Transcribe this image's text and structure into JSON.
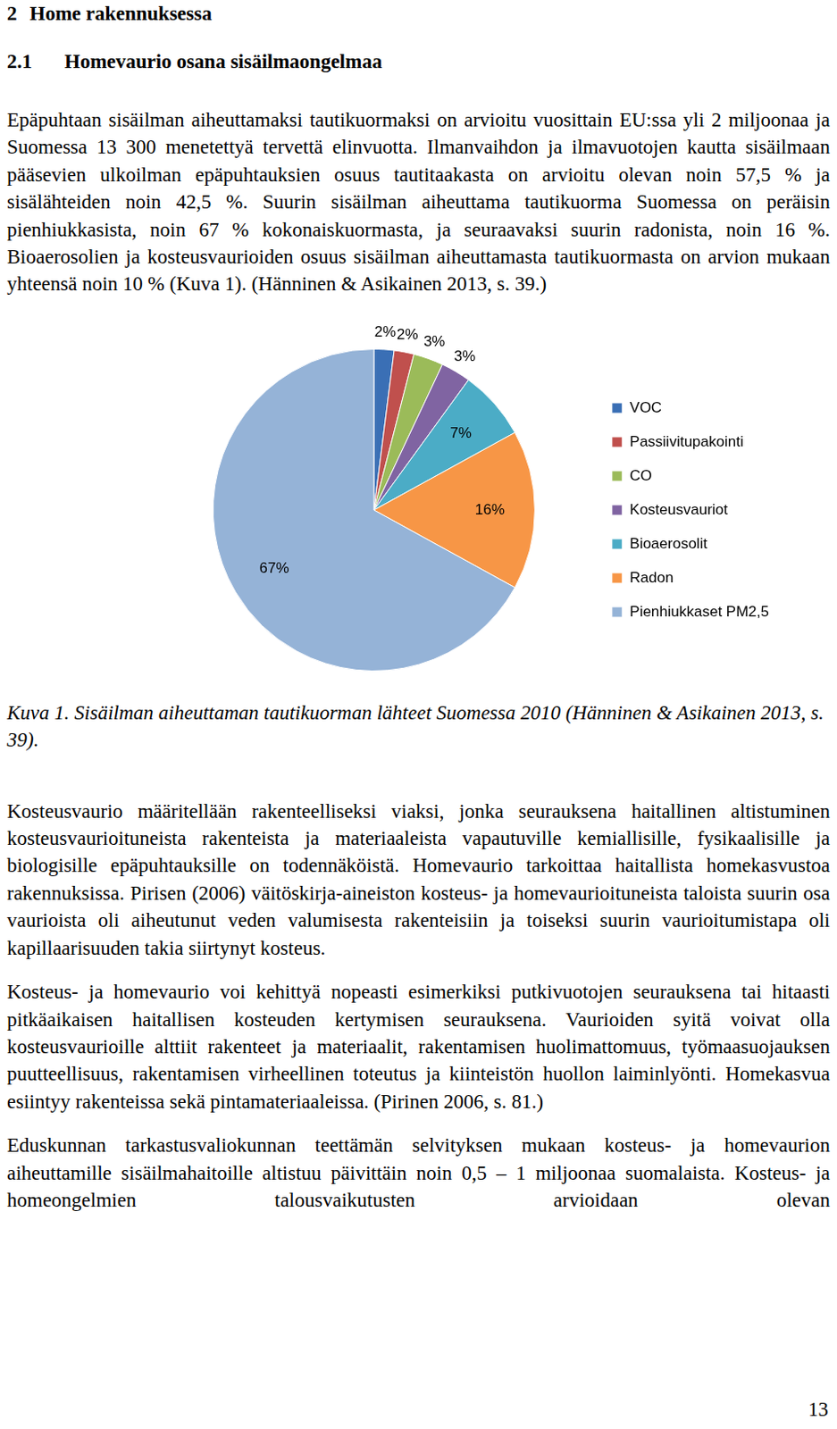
{
  "document": {
    "heading": {
      "number": "2",
      "text": "Home rakennuksessa"
    },
    "subheading": {
      "number": "2.1",
      "text": "Homevaurio osana sisäilmaongelmaa"
    },
    "paragraphs_before": [
      "Epäpuhtaan sisäilman aiheuttamaksi tautikuormaksi on arvioitu vuosittain EU:ssa yli 2 miljoonaa ja Suomessa 13 300 menetettyä tervettä elinvuotta. Ilmanvaihdon ja ilmavuotojen kautta sisäilmaan pääsevien ulkoilman epäpuhtauksien osuus tautitaakasta on arvioitu olevan noin 57,5 % ja sisälähteiden noin 42,5 %. Suurin sisäilman aiheuttama tautikuorma Suomessa on peräisin pienhiukkasista, noin 67 % kokonaiskuormasta, ja seuraavaksi suurin radonista, noin 16 %. Bioaerosolien ja kosteusvaurioiden osuus sisäilman aiheuttamasta tautikuormasta on arvion mukaan yhteensä noin 10 % (Kuva 1). (Hänninen & Asikainen 2013, s. 39.)"
    ],
    "figure_caption": "Kuva 1. Sisäilman aiheuttaman tautikuorman lähteet Suomessa 2010 (Hänninen & Asikainen 2013, s. 39).",
    "paragraphs_after": [
      "Kosteusvaurio määritellään rakenteelliseksi viaksi, jonka seurauksena haitallinen altistuminen kosteusvaurioituneista rakenteista ja materiaaleista vapautuville kemiallisille, fysikaalisille ja biologisille epäpuhtauksille on todennäköistä. Homevaurio tarkoittaa haitallista homekasvustoa rakennuksissa. Pirisen (2006) väitöskirja-aineiston kosteus- ja homevaurioituneista taloista suurin osa vaurioista oli aiheutunut veden valumisesta rakenteisiin ja toiseksi suurin vaurioitumistapa oli kapillaarisuuden takia siirtynyt kosteus.",
      "Kosteus- ja homevaurio voi kehittyä nopeasti esimerkiksi putkivuotojen seurauksena tai hitaasti pitkäaikaisen haitallisen kosteuden kertymisen seurauksena. Vaurioiden syitä voivat olla kosteusvaurioille alttiit rakenteet ja materiaalit, rakentamisen huolimattomuus, työmaasuojauksen puutteellisuus, rakentamisen virheellinen toteutus ja kiinteistön huollon laiminlyönti. Homekasvua esiintyy rakenteissa sekä pintamateriaaleissa. (Pirinen 2006, s. 81.)",
      "Eduskunnan tarkastusvaliokunnan teettämän selvityksen mukaan kosteus- ja homevaurion aiheuttamille sisäilmahaitoille altistuu päivittäin noin 0,5 – 1 miljoonaa suomalaista. Kosteus- ja homeongelmien talousvaikutusten arvioidaan olevan"
    ],
    "page_number": 13
  },
  "chart_data": {
    "type": "pie",
    "categories": [
      "VOC",
      "Passiivitupakointi",
      "CO",
      "Kosteusvauriot",
      "Bioaerosolit",
      "Radon",
      "Pienhiukkaset PM2,5"
    ],
    "values": [
      2,
      2,
      3,
      3,
      7,
      16,
      67
    ],
    "value_labels": [
      "2%",
      "2%",
      "3%",
      "3%",
      "7%",
      "16%",
      "67%"
    ],
    "colors": [
      "#3a6fb5",
      "#c0504d",
      "#9bbb59",
      "#8064a2",
      "#4bacc6",
      "#f79646",
      "#95b3d7"
    ],
    "data_labels": true,
    "legend": "right"
  }
}
